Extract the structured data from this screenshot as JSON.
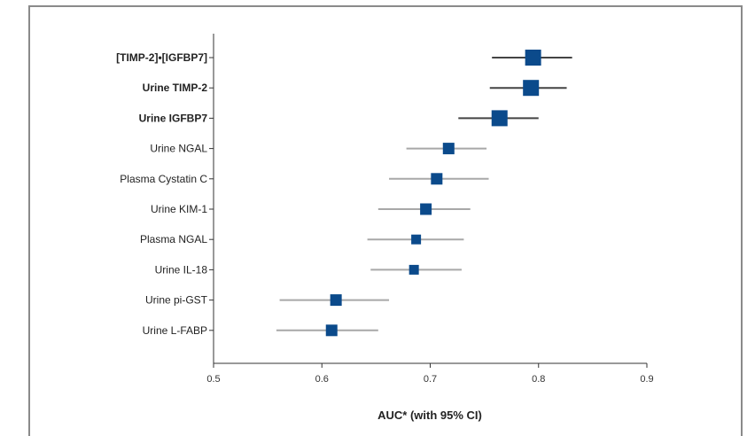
{
  "chart_data": {
    "type": "scatter",
    "subtype": "forest-plot",
    "xlabel": "AUC* (with 95% CI)",
    "xlim": [
      0.5,
      0.9
    ],
    "xticks": [
      "0.5",
      "0.6",
      "0.7",
      "0.8",
      "0.9"
    ],
    "grid": false,
    "colors": {
      "marker": "#0b4a8b",
      "ci_emphasis": "#444444",
      "ci_normal": "#a8a8a8",
      "axis": "#333333"
    },
    "rows": [
      {
        "label": "[TIMP-2]•[IGFBP7]",
        "auc": 0.795,
        "lo": 0.757,
        "hi": 0.831,
        "emphasis": true,
        "size": "large"
      },
      {
        "label": "Urine TIMP-2",
        "auc": 0.793,
        "lo": 0.755,
        "hi": 0.826,
        "emphasis": true,
        "size": "large"
      },
      {
        "label": "Urine IGFBP7",
        "auc": 0.764,
        "lo": 0.726,
        "hi": 0.8,
        "emphasis": true,
        "size": "large"
      },
      {
        "label": "Urine NGAL",
        "auc": 0.717,
        "lo": 0.678,
        "hi": 0.752,
        "emphasis": false,
        "size": "medium"
      },
      {
        "label": "Plasma Cystatin C",
        "auc": 0.706,
        "lo": 0.662,
        "hi": 0.754,
        "emphasis": false,
        "size": "medium"
      },
      {
        "label": "Urine KIM-1",
        "auc": 0.696,
        "lo": 0.652,
        "hi": 0.737,
        "emphasis": false,
        "size": "medium"
      },
      {
        "label": "Plasma NGAL",
        "auc": 0.687,
        "lo": 0.642,
        "hi": 0.731,
        "emphasis": false,
        "size": "small"
      },
      {
        "label": "Urine IL-18",
        "auc": 0.685,
        "lo": 0.645,
        "hi": 0.729,
        "emphasis": false,
        "size": "small"
      },
      {
        "label": "Urine pi-GST",
        "auc": 0.613,
        "lo": 0.561,
        "hi": 0.662,
        "emphasis": false,
        "size": "medium"
      },
      {
        "label": "Urine L-FABP",
        "auc": 0.609,
        "lo": 0.558,
        "hi": 0.652,
        "emphasis": false,
        "size": "medium"
      }
    ]
  }
}
